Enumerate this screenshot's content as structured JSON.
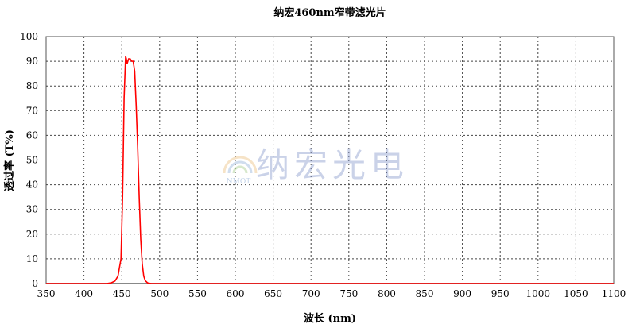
{
  "chart_data": {
    "type": "line",
    "title": "纳宏460nm窄带滤光片",
    "xlabel": "波长 (nm)",
    "ylabel": "透过率 (T%)",
    "xlim": [
      350,
      1100
    ],
    "ylim": [
      0,
      100
    ],
    "xticks": [
      350,
      400,
      450,
      500,
      550,
      600,
      650,
      700,
      750,
      800,
      850,
      900,
      950,
      1000,
      1050,
      1100
    ],
    "yticks": [
      0,
      10,
      20,
      30,
      40,
      50,
      60,
      70,
      80,
      90,
      100
    ],
    "grid": true,
    "grid_style": "dotted",
    "series": [
      {
        "color": "#ff0000",
        "x": [
          350,
          430,
          436,
          441,
          445,
          449,
          451,
          453,
          455,
          456,
          457,
          459,
          461,
          463,
          465,
          467,
          469,
          471,
          473,
          475,
          477,
          479,
          481,
          484,
          489,
          1100
        ],
        "y": [
          0,
          0,
          0.3,
          1,
          3,
          10,
          35,
          75,
          92,
          91,
          89,
          91,
          91,
          90,
          90,
          86,
          72,
          55,
          35,
          18,
          8,
          3,
          1.2,
          0.3,
          0,
          0
        ]
      }
    ],
    "watermark": {
      "text": "纳宏光电",
      "logo_text": "NMOT"
    }
  }
}
